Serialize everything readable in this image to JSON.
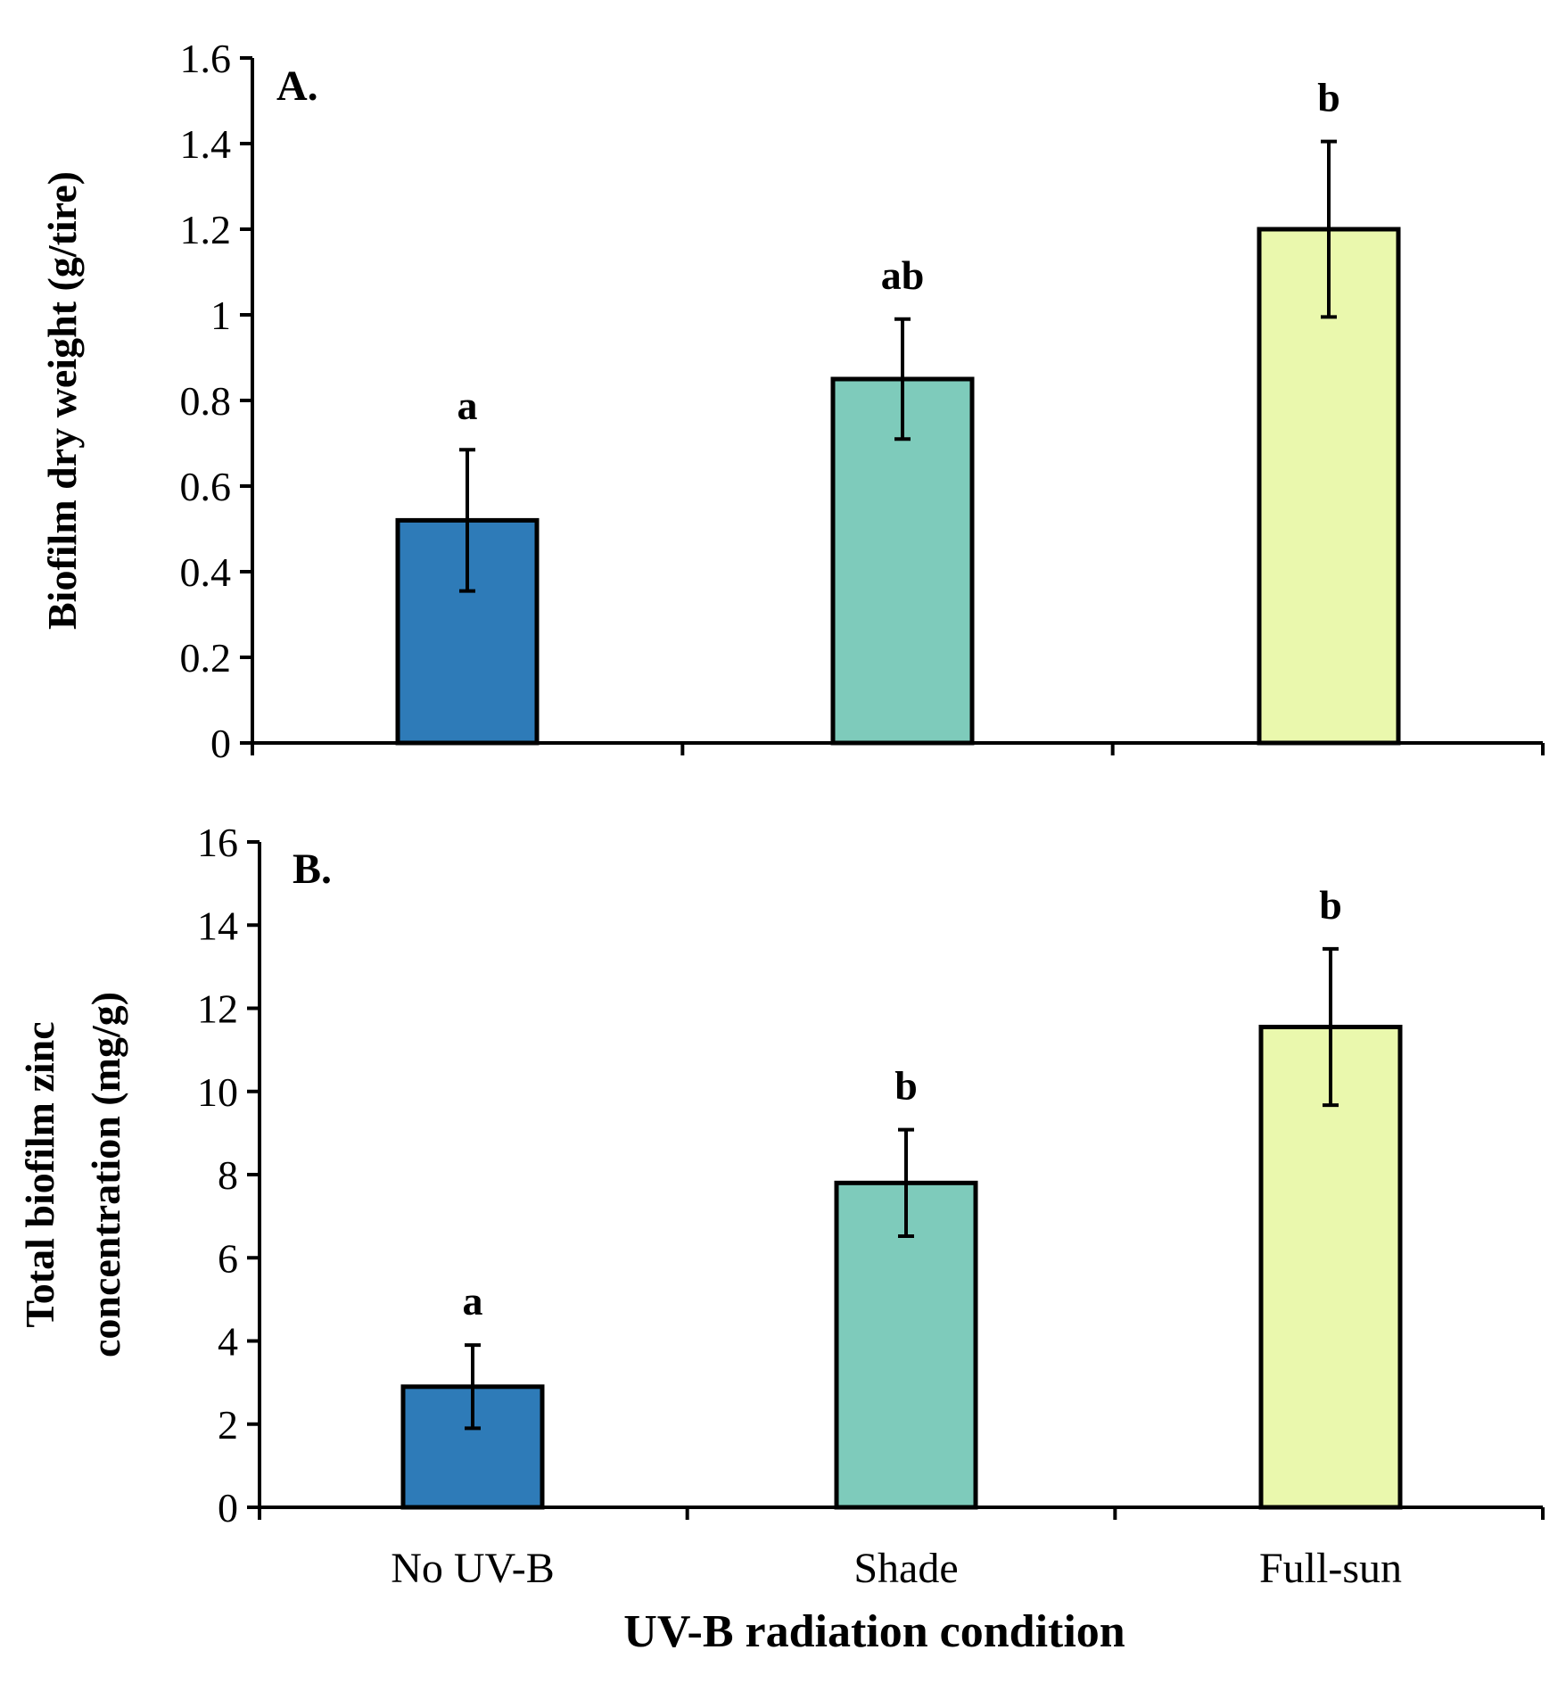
{
  "chart_data": [
    {
      "type": "bar",
      "panel_label": "A.",
      "ylabel": "Biofilm dry weight (g/tire)",
      "ylim": [
        0,
        1.6
      ],
      "yticks": [
        0,
        0.2,
        0.4,
        0.6,
        0.8,
        1,
        1.2,
        1.4,
        1.6
      ],
      "categories": [
        "No UV-B",
        "Shade",
        "Full-sun"
      ],
      "values": [
        0.52,
        0.85,
        1.2
      ],
      "errors": [
        0.165,
        0.14,
        0.205
      ],
      "significance": [
        "a",
        "ab",
        "b"
      ],
      "colors": [
        "#2e7bb8",
        "#7ecbbb",
        "#eaf8ad"
      ]
    },
    {
      "type": "bar",
      "panel_label": "B.",
      "ylabel_lines": [
        "Total biofilm zinc",
        "concentration (mg/g)"
      ],
      "ylim": [
        0,
        16
      ],
      "yticks": [
        0,
        2,
        4,
        6,
        8,
        10,
        12,
        14,
        16
      ],
      "categories": [
        "No UV-B",
        "Shade",
        "Full-sun"
      ],
      "values": [
        2.9,
        7.8,
        11.55
      ],
      "errors": [
        1.0,
        1.28,
        1.88
      ],
      "significance": [
        "a",
        "b",
        "b"
      ],
      "colors": [
        "#2e7bb8",
        "#7ecbbb",
        "#eaf8ad"
      ],
      "xlabel": "UV-B radiation condition"
    }
  ]
}
